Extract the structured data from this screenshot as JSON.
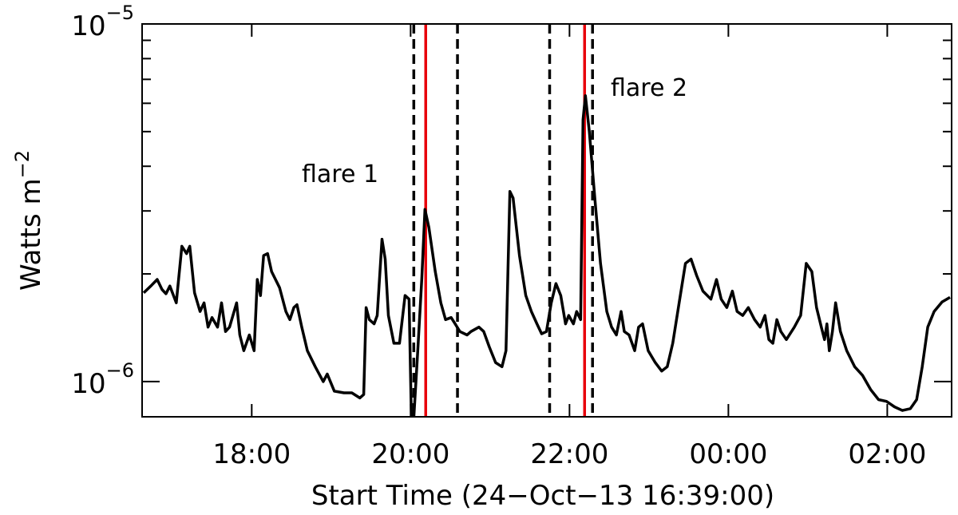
{
  "chart_data": {
    "type": "line",
    "xlabel": "Start Time (24−Oct−13 16:39:00)",
    "ylabel": {
      "text": "Watts m",
      "exponent": "−2"
    },
    "log_y": true,
    "xlim": [
      16.62,
      26.81
    ],
    "ylim": [
      7.97e-07,
      1e-05
    ],
    "xticks": [
      {
        "value": 18,
        "label": "18:00"
      },
      {
        "value": 20,
        "label": "20:00"
      },
      {
        "value": 22,
        "label": "22:00"
      },
      {
        "value": 24,
        "label": "00:00"
      },
      {
        "value": 26,
        "label": "02:00"
      }
    ],
    "yticks": [
      {
        "value": 1e-06,
        "label": "10",
        "exponent": "−6"
      },
      {
        "value": 1e-05,
        "label": "10",
        "exponent": "−5"
      }
    ],
    "yminor_ticks": [
      2e-06,
      3e-06,
      4e-06,
      5e-06,
      6e-06,
      7e-06,
      8e-06,
      9e-06
    ],
    "markers": [
      {
        "x": 20.04,
        "color": "#000000",
        "dashed": true
      },
      {
        "x": 20.19,
        "color": "#e8000b",
        "dashed": false
      },
      {
        "x": 20.59,
        "color": "#000000",
        "dashed": true
      },
      {
        "x": 21.75,
        "color": "#000000",
        "dashed": true
      },
      {
        "x": 22.19,
        "color": "#e8000b",
        "dashed": false
      },
      {
        "x": 22.29,
        "color": "#000000",
        "dashed": true
      }
    ],
    "annotations": [
      "flare 1",
      "flare 2"
    ],
    "series": [
      {
        "color": "#000000",
        "x": [
          16.64,
          16.74,
          16.81,
          16.87,
          16.92,
          16.97,
          17.05,
          17.12,
          17.18,
          17.22,
          17.28,
          17.35,
          17.4,
          17.45,
          17.5,
          17.57,
          17.62,
          17.67,
          17.72,
          17.81,
          17.85,
          17.9,
          17.97,
          18.03,
          18.07,
          18.11,
          18.15,
          18.2,
          18.25,
          18.35,
          18.43,
          18.48,
          18.53,
          18.57,
          18.63,
          18.7,
          18.8,
          18.9,
          18.95,
          19.04,
          19.16,
          19.26,
          19.36,
          19.41,
          19.44,
          19.48,
          19.54,
          19.58,
          19.64,
          19.68,
          19.72,
          19.79,
          19.86,
          19.93,
          19.98,
          20.01,
          20.04,
          20.09,
          20.14,
          20.18,
          20.23,
          20.31,
          20.38,
          20.44,
          20.51,
          20.56,
          20.62,
          20.71,
          20.76,
          20.86,
          20.92,
          20.99,
          21.07,
          21.15,
          21.2,
          21.25,
          21.29,
          21.37,
          21.45,
          21.52,
          21.59,
          21.65,
          21.71,
          21.77,
          21.83,
          21.89,
          21.95,
          21.99,
          22.05,
          22.09,
          22.14,
          22.17,
          22.2,
          22.25,
          22.32,
          22.39,
          22.47,
          22.53,
          22.59,
          22.65,
          22.69,
          22.75,
          22.82,
          22.87,
          22.92,
          22.99,
          23.08,
          23.16,
          23.23,
          23.3,
          23.38,
          23.46,
          23.53,
          23.6,
          23.68,
          23.78,
          23.85,
          23.91,
          23.98,
          24.05,
          24.11,
          24.18,
          24.25,
          24.33,
          24.4,
          24.46,
          24.51,
          24.56,
          24.61,
          24.66,
          24.73,
          24.83,
          24.91,
          24.98,
          25.05,
          25.11,
          25.17,
          25.21,
          25.24,
          25.27,
          25.31,
          25.35,
          25.41,
          25.49,
          25.59,
          25.69,
          25.79,
          25.89,
          25.99,
          26.09,
          26.19,
          26.29,
          26.37,
          26.44,
          26.51,
          26.59,
          26.69,
          26.79
        ],
        "values": [
          1.77e-06,
          1.86e-06,
          1.93e-06,
          1.81e-06,
          1.76e-06,
          1.85e-06,
          1.66e-06,
          2.39e-06,
          2.28e-06,
          2.39e-06,
          1.77e-06,
          1.57e-06,
          1.66e-06,
          1.42e-06,
          1.51e-06,
          1.42e-06,
          1.66e-06,
          1.38e-06,
          1.42e-06,
          1.66e-06,
          1.35e-06,
          1.22e-06,
          1.35e-06,
          1.22e-06,
          1.93e-06,
          1.74e-06,
          2.25e-06,
          2.28e-06,
          2.03e-06,
          1.83e-06,
          1.57e-06,
          1.49e-06,
          1.61e-06,
          1.64e-06,
          1.42e-06,
          1.22e-06,
          1.1e-06,
          1e-06,
          1.05e-06,
          9.4e-07,
          9.3e-07,
          9.3e-07,
          9e-07,
          9.2e-07,
          1.61e-06,
          1.49e-06,
          1.45e-06,
          1.53e-06,
          2.5e-06,
          2.2e-06,
          1.53e-06,
          1.28e-06,
          1.28e-06,
          1.74e-06,
          1.7e-06,
          7.9e-07,
          7.9e-07,
          1.22e-06,
          1.93e-06,
          3.03e-06,
          2.7e-06,
          2.03e-06,
          1.66e-06,
          1.49e-06,
          1.51e-06,
          1.45e-06,
          1.38e-06,
          1.35e-06,
          1.38e-06,
          1.42e-06,
          1.38e-06,
          1.25e-06,
          1.13e-06,
          1.1e-06,
          1.22e-06,
          3.4e-06,
          3.26e-06,
          2.25e-06,
          1.74e-06,
          1.57e-06,
          1.45e-06,
          1.36e-06,
          1.38e-06,
          1.66e-06,
          1.88e-06,
          1.74e-06,
          1.45e-06,
          1.53e-06,
          1.45e-06,
          1.57e-06,
          1.49e-06,
          5.4e-06,
          6.3e-06,
          5e-06,
          3.23e-06,
          2.14e-06,
          1.57e-06,
          1.42e-06,
          1.35e-06,
          1.57e-06,
          1.38e-06,
          1.35e-06,
          1.22e-06,
          1.42e-06,
          1.45e-06,
          1.22e-06,
          1.13e-06,
          1.07e-06,
          1.1e-06,
          1.28e-06,
          1.66e-06,
          2.14e-06,
          2.2e-06,
          1.98e-06,
          1.79e-06,
          1.7e-06,
          1.93e-06,
          1.7e-06,
          1.61e-06,
          1.79e-06,
          1.57e-06,
          1.53e-06,
          1.61e-06,
          1.49e-06,
          1.42e-06,
          1.53e-06,
          1.31e-06,
          1.28e-06,
          1.49e-06,
          1.38e-06,
          1.31e-06,
          1.42e-06,
          1.53e-06,
          2.14e-06,
          2.03e-06,
          1.61e-06,
          1.42e-06,
          1.31e-06,
          1.45e-06,
          1.22e-06,
          1.38e-06,
          1.66e-06,
          1.38e-06,
          1.22e-06,
          1.1e-06,
          1.04e-06,
          9.5e-07,
          8.9e-07,
          8.8e-07,
          8.5e-07,
          8.3e-07,
          8.4e-07,
          8.9e-07,
          1.1e-06,
          1.42e-06,
          1.57e-06,
          1.67e-06,
          1.72e-06
        ]
      }
    ]
  }
}
